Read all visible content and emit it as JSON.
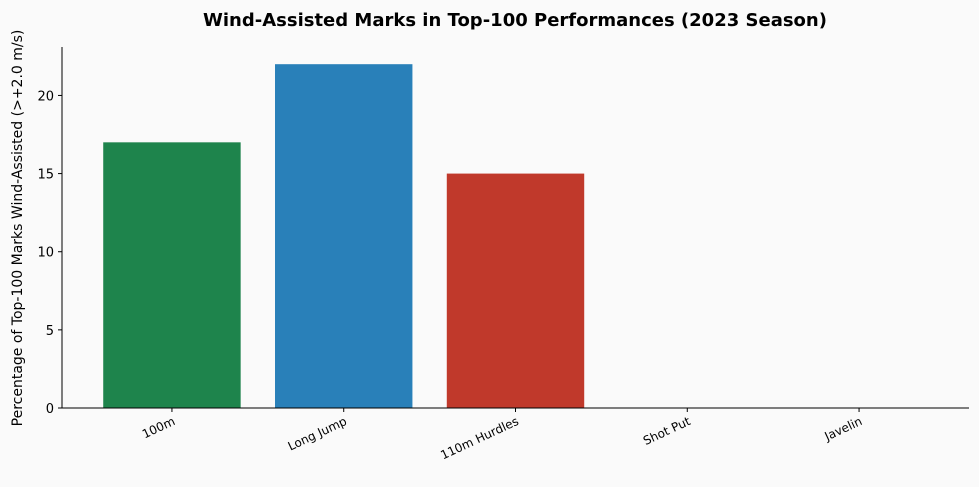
{
  "chart_data": {
    "type": "bar",
    "title": "Wind-Assisted Marks in Top-100 Performances (2023 Season)",
    "xlabel": "",
    "ylabel": "Percentage of Top-100 Marks Wind-Assisted (>+2.0 m/s)",
    "categories": [
      "100m",
      "Long Jump",
      "110m Hurdles",
      "Shot Put",
      "Javelin"
    ],
    "values": [
      17,
      22,
      15,
      0,
      0
    ],
    "colors": [
      "#1e844c",
      "#2980b9",
      "#c0392b",
      "#7f8c8d",
      "#8e44ad"
    ],
    "ylim": [
      0,
      23.1
    ],
    "yticks": [
      0,
      5,
      10,
      15,
      20
    ],
    "grid": false,
    "background": "#fafafa"
  }
}
